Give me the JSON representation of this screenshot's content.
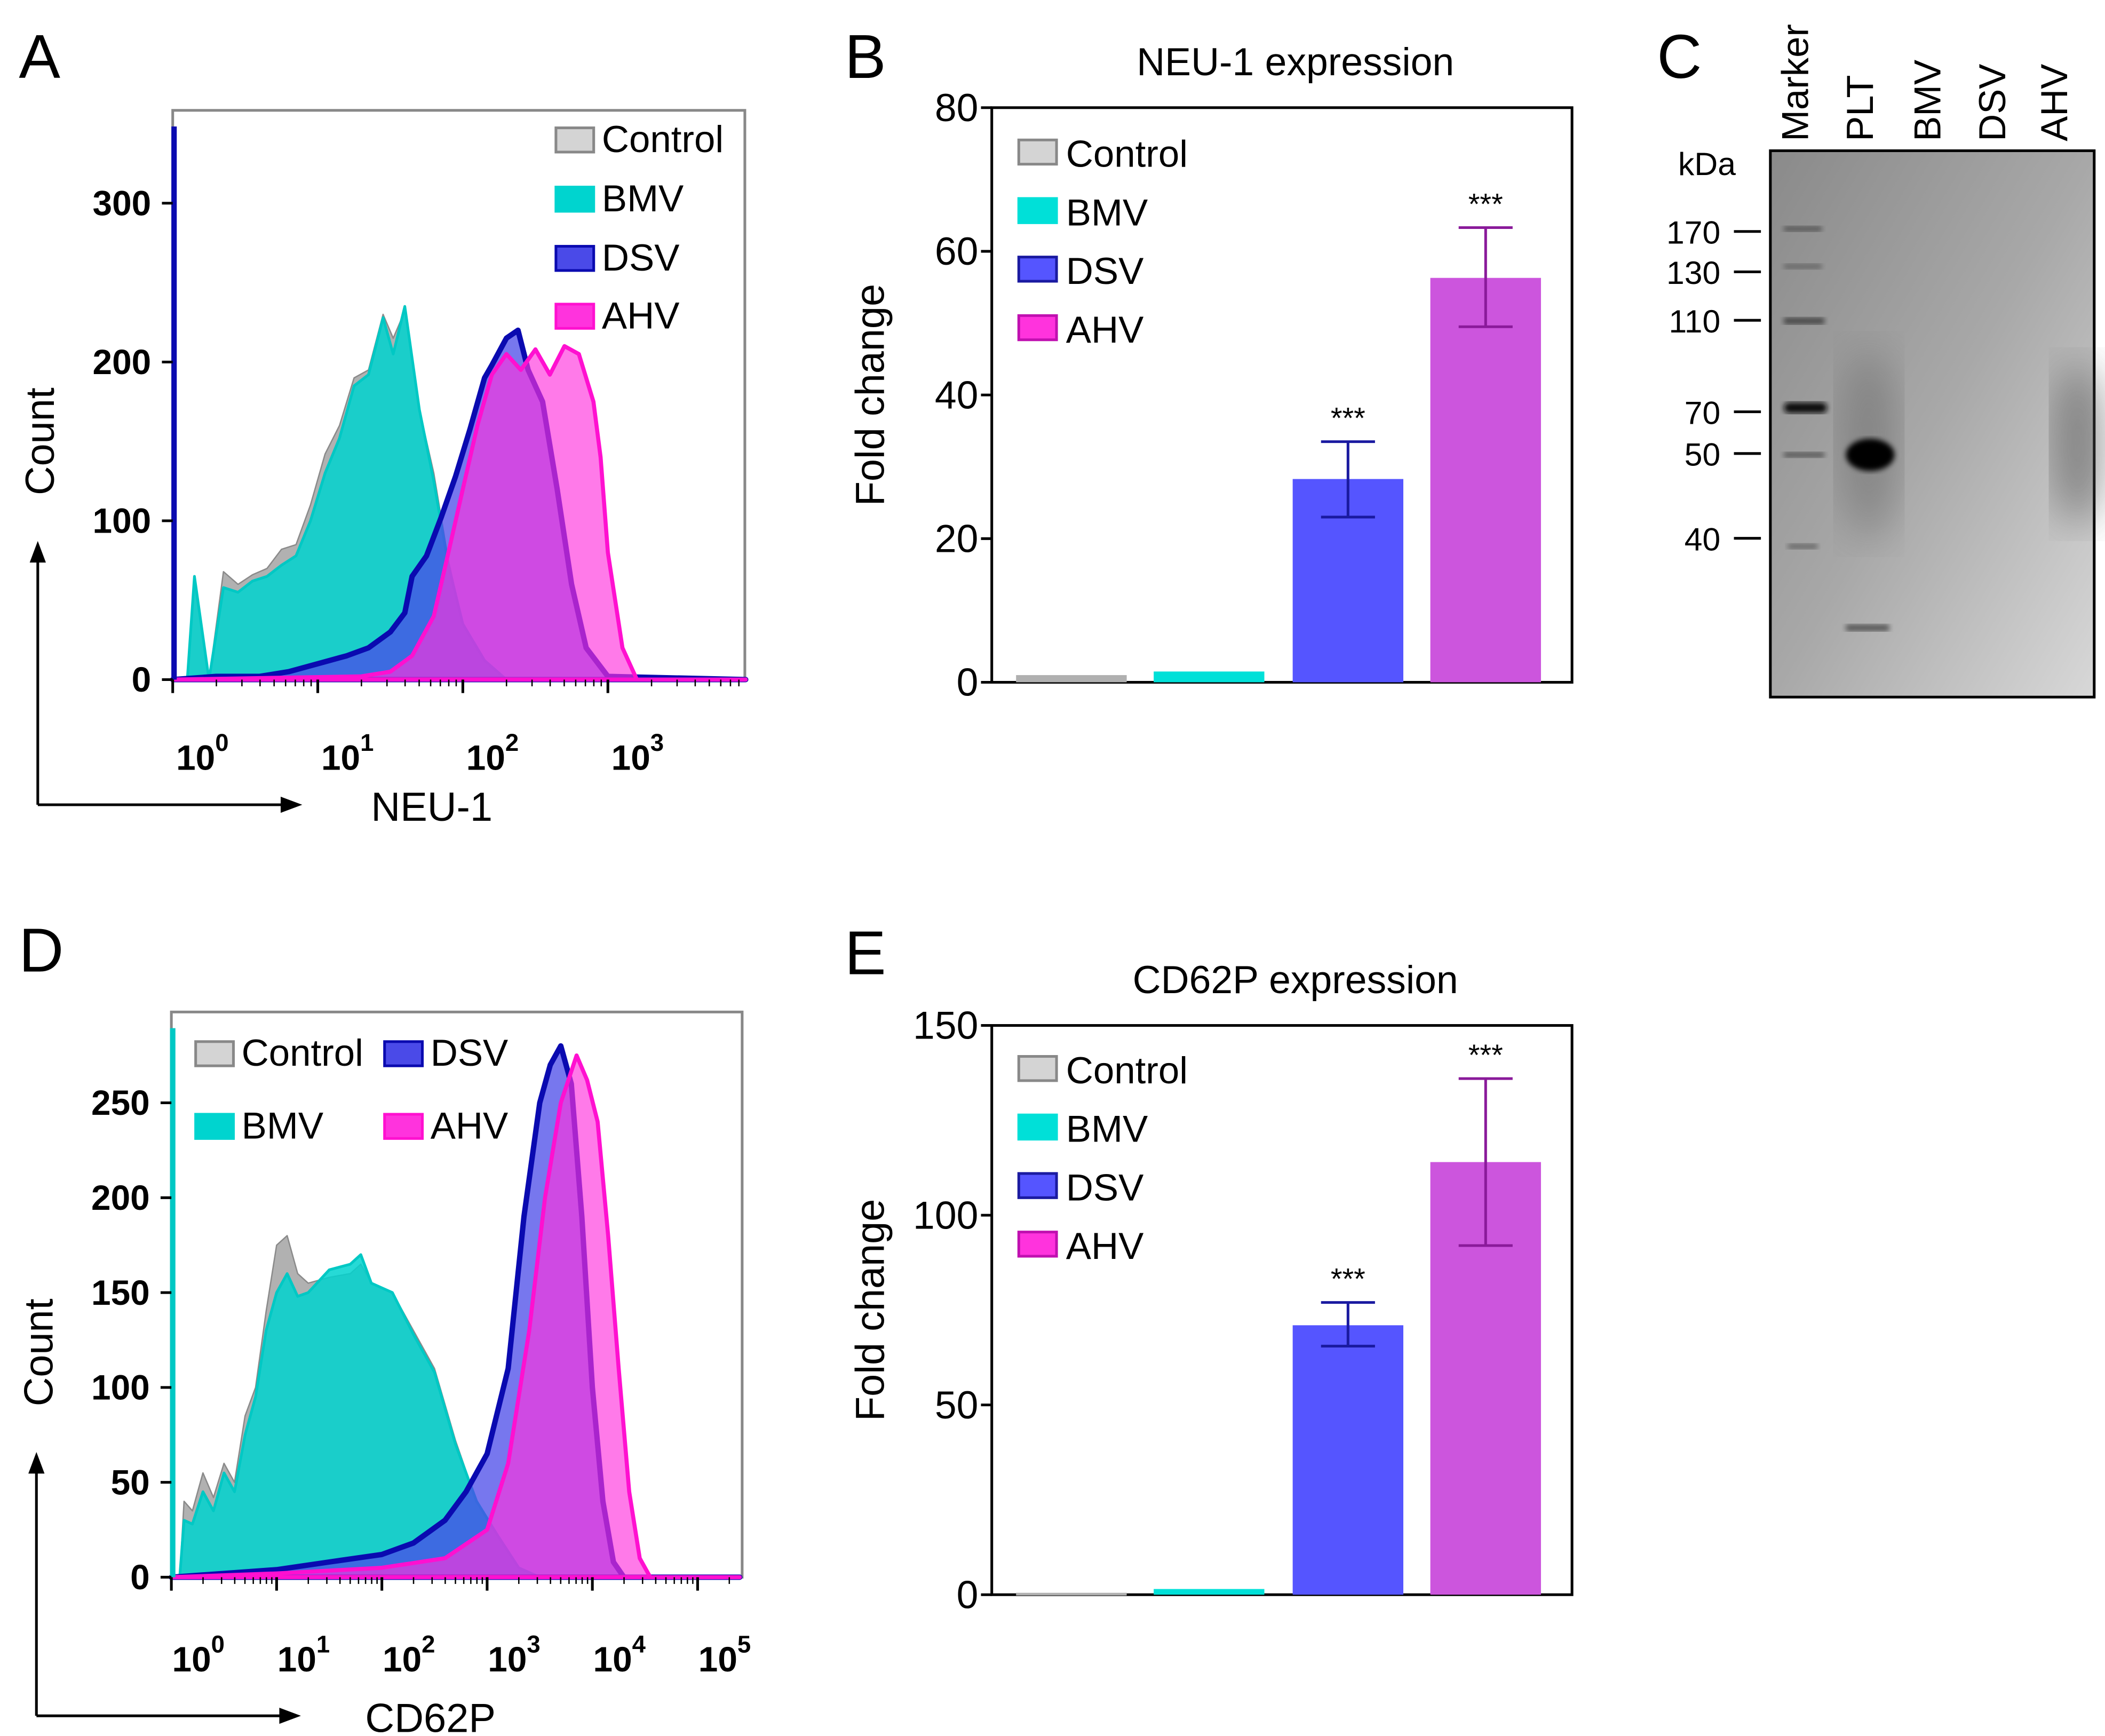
{
  "panel_letters": {
    "a": "A",
    "b": "B",
    "c": "C",
    "d": "D",
    "e": "E"
  },
  "colors": {
    "control": "#a8a8a8",
    "control_line": "#8a8a8a",
    "bmv": "#00d4cf",
    "bmv_line": "#00c8c4",
    "dsv": "#4a4ae8",
    "dsv_line": "#0a0ab0",
    "ahv": "#ff33dd",
    "ahv_line": "#ff10d0",
    "bar_control": "#b0b0b0",
    "bar_bmv": "#00e0d8",
    "bar_dsv": "#5555ff",
    "bar_ahv": "#cc55dd",
    "err_dsv": "#1a1aa0",
    "err_ahv": "#8a1a9a"
  },
  "chart_data": [
    {
      "id": "A",
      "type": "area",
      "xlabel": "NEU-1",
      "ylabel": "Count",
      "xscale": "log",
      "xlim_log10": [
        0,
        3.95
      ],
      "ylim": [
        0,
        356
      ],
      "yticks": [
        "0",
        "100",
        "200",
        "300"
      ],
      "ytick_values": [
        0,
        100,
        200,
        300
      ],
      "xticks": [
        {
          "base": "10",
          "exp": "0",
          "v": 0
        },
        {
          "base": "10",
          "exp": "1",
          "v": 1
        },
        {
          "base": "10",
          "exp": "2",
          "v": 2
        },
        {
          "base": "10",
          "exp": "3",
          "v": 3
        }
      ],
      "legend": [
        "Control",
        "BMV",
        "DSV",
        "AHV"
      ],
      "legend_position": "top-right",
      "series": [
        {
          "name": "Control",
          "key": "control",
          "points": [
            [
              0,
              0
            ],
            [
              0.1,
              0
            ],
            [
              0.15,
              60
            ],
            [
              0.25,
              0
            ],
            [
              0.35,
              68
            ],
            [
              0.45,
              60
            ],
            [
              0.55,
              66
            ],
            [
              0.65,
              70
            ],
            [
              0.75,
              82
            ],
            [
              0.85,
              85
            ],
            [
              0.95,
              110
            ],
            [
              1.05,
              142
            ],
            [
              1.15,
              160
            ],
            [
              1.25,
              190
            ],
            [
              1.35,
              195
            ],
            [
              1.45,
              230
            ],
            [
              1.52,
              215
            ],
            [
              1.6,
              232
            ],
            [
              1.7,
              170
            ],
            [
              1.8,
              130
            ],
            [
              1.9,
              75
            ],
            [
              2.0,
              35
            ],
            [
              2.15,
              12
            ],
            [
              2.3,
              0
            ],
            [
              3.95,
              0
            ]
          ]
        },
        {
          "name": "BMV",
          "key": "bmv",
          "points": [
            [
              0,
              0
            ],
            [
              0.1,
              0
            ],
            [
              0.15,
              65
            ],
            [
              0.25,
              0
            ],
            [
              0.35,
              58
            ],
            [
              0.45,
              55
            ],
            [
              0.55,
              62
            ],
            [
              0.65,
              65
            ],
            [
              0.75,
              72
            ],
            [
              0.85,
              78
            ],
            [
              0.95,
              100
            ],
            [
              1.05,
              130
            ],
            [
              1.15,
              152
            ],
            [
              1.25,
              185
            ],
            [
              1.35,
              192
            ],
            [
              1.45,
              228
            ],
            [
              1.52,
              205
            ],
            [
              1.6,
              235
            ],
            [
              1.7,
              170
            ],
            [
              1.8,
              125
            ],
            [
              1.9,
              72
            ],
            [
              2.0,
              35
            ],
            [
              2.15,
              12
            ],
            [
              2.3,
              0
            ],
            [
              3.95,
              0
            ]
          ]
        },
        {
          "name": "DSV",
          "key": "dsv",
          "points": [
            [
              0,
              0
            ],
            [
              0.3,
              2
            ],
            [
              0.6,
              2
            ],
            [
              0.8,
              5
            ],
            [
              1.0,
              10
            ],
            [
              1.2,
              15
            ],
            [
              1.35,
              20
            ],
            [
              1.5,
              30
            ],
            [
              1.6,
              42
            ],
            [
              1.65,
              65
            ],
            [
              1.75,
              78
            ],
            [
              1.85,
              102
            ],
            [
              1.95,
              128
            ],
            [
              2.05,
              158
            ],
            [
              2.15,
              190
            ],
            [
              2.2,
              198
            ],
            [
              2.3,
              215
            ],
            [
              2.38,
              220
            ],
            [
              2.45,
              195
            ],
            [
              2.55,
              175
            ],
            [
              2.65,
              120
            ],
            [
              2.75,
              60
            ],
            [
              2.85,
              20
            ],
            [
              3.0,
              2
            ],
            [
              3.95,
              0
            ]
          ]
        },
        {
          "name": "AHV",
          "key": "ahv",
          "points": [
            [
              0,
              0
            ],
            [
              1.3,
              2
            ],
            [
              1.5,
              5
            ],
            [
              1.65,
              15
            ],
            [
              1.8,
              40
            ],
            [
              1.9,
              80
            ],
            [
              2.0,
              120
            ],
            [
              2.1,
              160
            ],
            [
              2.2,
              192
            ],
            [
              2.3,
              205
            ],
            [
              2.4,
              195
            ],
            [
              2.5,
              208
            ],
            [
              2.6,
              192
            ],
            [
              2.7,
              210
            ],
            [
              2.8,
              205
            ],
            [
              2.9,
              175
            ],
            [
              2.95,
              140
            ],
            [
              3.0,
              80
            ],
            [
              3.1,
              20
            ],
            [
              3.2,
              0
            ],
            [
              3.95,
              0
            ]
          ]
        }
      ]
    },
    {
      "id": "B",
      "type": "bar",
      "title": "NEU-1 expression",
      "ylabel": "Fold change",
      "ylim": [
        0,
        80
      ],
      "yticks": [
        "0",
        "20",
        "40",
        "60",
        "80"
      ],
      "ytick_values": [
        0,
        20,
        40,
        60,
        80
      ],
      "categories": [
        "Control",
        "BMV",
        "DSV",
        "AHV"
      ],
      "legend_position": "top-left",
      "values": [
        1,
        1.5,
        28.3,
        56.3
      ],
      "err_low": [
        null,
        null,
        23,
        49.5
      ],
      "err_high": [
        null,
        null,
        33.5,
        63.3
      ],
      "annotations": [
        "",
        "",
        "***",
        "***"
      ]
    },
    {
      "id": "D",
      "type": "area",
      "xlabel": "CD62P",
      "ylabel": "Count",
      "xscale": "log",
      "xlim_log10": [
        0,
        5.4
      ],
      "ylim": [
        0,
        300
      ],
      "yticks": [
        "0",
        "50",
        "100",
        "150",
        "200",
        "250"
      ],
      "ytick_values": [
        0,
        50,
        100,
        150,
        200,
        250
      ],
      "xticks": [
        {
          "base": "10",
          "exp": "0",
          "v": 0
        },
        {
          "base": "10",
          "exp": "1",
          "v": 1
        },
        {
          "base": "10",
          "exp": "2",
          "v": 2
        },
        {
          "base": "10",
          "exp": "3",
          "v": 3
        },
        {
          "base": "10",
          "exp": "4",
          "v": 4
        },
        {
          "base": "10",
          "exp": "5",
          "v": 5
        }
      ],
      "legend": [
        "Control",
        "DSV",
        "BMV",
        "AHV"
      ],
      "legend_position": "top-left",
      "series": [
        {
          "name": "Control",
          "key": "control",
          "points": [
            [
              0,
              0
            ],
            [
              0.08,
              0
            ],
            [
              0.12,
              40
            ],
            [
              0.2,
              35
            ],
            [
              0.3,
              55
            ],
            [
              0.4,
              42
            ],
            [
              0.5,
              60
            ],
            [
              0.6,
              50
            ],
            [
              0.7,
              85
            ],
            [
              0.8,
              100
            ],
            [
              0.9,
              140
            ],
            [
              1.0,
              175
            ],
            [
              1.1,
              180
            ],
            [
              1.2,
              160
            ],
            [
              1.3,
              155
            ],
            [
              1.5,
              158
            ],
            [
              1.7,
              160
            ],
            [
              1.8,
              165
            ],
            [
              1.9,
              155
            ],
            [
              2.1,
              150
            ],
            [
              2.3,
              130
            ],
            [
              2.5,
              110
            ],
            [
              2.7,
              72
            ],
            [
              2.9,
              40
            ],
            [
              3.1,
              22
            ],
            [
              3.3,
              5
            ],
            [
              3.5,
              0
            ],
            [
              5.4,
              0
            ]
          ]
        },
        {
          "name": "BMV",
          "key": "bmv",
          "points": [
            [
              0,
              0
            ],
            [
              0.08,
              0
            ],
            [
              0.12,
              30
            ],
            [
              0.2,
              28
            ],
            [
              0.3,
              45
            ],
            [
              0.4,
              35
            ],
            [
              0.5,
              55
            ],
            [
              0.6,
              45
            ],
            [
              0.7,
              75
            ],
            [
              0.8,
              95
            ],
            [
              0.9,
              130
            ],
            [
              1.0,
              150
            ],
            [
              1.1,
              160
            ],
            [
              1.2,
              148
            ],
            [
              1.3,
              150
            ],
            [
              1.5,
              162
            ],
            [
              1.7,
              165
            ],
            [
              1.8,
              170
            ],
            [
              1.9,
              155
            ],
            [
              2.1,
              150
            ],
            [
              2.3,
              128
            ],
            [
              2.5,
              108
            ],
            [
              2.7,
              70
            ],
            [
              2.9,
              40
            ],
            [
              3.1,
              22
            ],
            [
              3.3,
              5
            ],
            [
              3.5,
              0
            ],
            [
              5.4,
              0
            ]
          ]
        },
        {
          "name": "DSV",
          "key": "dsv",
          "points": [
            [
              0,
              0
            ],
            [
              0.5,
              2
            ],
            [
              1.0,
              4
            ],
            [
              1.5,
              8
            ],
            [
              2.0,
              12
            ],
            [
              2.3,
              18
            ],
            [
              2.6,
              30
            ],
            [
              2.8,
              45
            ],
            [
              3.0,
              65
            ],
            [
              3.2,
              110
            ],
            [
              3.35,
              190
            ],
            [
              3.5,
              250
            ],
            [
              3.6,
              270
            ],
            [
              3.7,
              280
            ],
            [
              3.8,
              260
            ],
            [
              3.9,
              190
            ],
            [
              4.0,
              100
            ],
            [
              4.1,
              40
            ],
            [
              4.2,
              8
            ],
            [
              4.3,
              0
            ],
            [
              5.4,
              0
            ]
          ]
        },
        {
          "name": "AHV",
          "key": "ahv",
          "points": [
            [
              0,
              0
            ],
            [
              1.0,
              2
            ],
            [
              2.0,
              5
            ],
            [
              2.6,
              10
            ],
            [
              3.0,
              25
            ],
            [
              3.2,
              60
            ],
            [
              3.4,
              130
            ],
            [
              3.55,
              200
            ],
            [
              3.7,
              250
            ],
            [
              3.85,
              275
            ],
            [
              3.95,
              262
            ],
            [
              4.05,
              240
            ],
            [
              4.15,
              180
            ],
            [
              4.25,
              110
            ],
            [
              4.35,
              45
            ],
            [
              4.45,
              10
            ],
            [
              4.55,
              0
            ],
            [
              5.4,
              0
            ]
          ]
        }
      ]
    },
    {
      "id": "E",
      "type": "bar",
      "title": "CD62P expression",
      "ylabel": "Fold change",
      "ylim": [
        0,
        150
      ],
      "yticks": [
        "0",
        "50",
        "100",
        "150"
      ],
      "ytick_values": [
        0,
        50,
        100,
        150
      ],
      "categories": [
        "Control",
        "BMV",
        "DSV",
        "AHV"
      ],
      "legend_position": "top-left",
      "values": [
        0.5,
        1.5,
        71,
        114
      ],
      "err_low": [
        null,
        null,
        65.5,
        92
      ],
      "err_high": [
        null,
        null,
        77,
        136
      ],
      "annotations": [
        "",
        "",
        "***",
        "***"
      ]
    }
  ],
  "blot": {
    "unit": "kDa",
    "lanes": [
      "Marker",
      "PLT",
      "BMV",
      "DSV",
      "AHV"
    ],
    "markers": [
      "170",
      "130",
      "110",
      "70",
      "50",
      "40"
    ]
  }
}
